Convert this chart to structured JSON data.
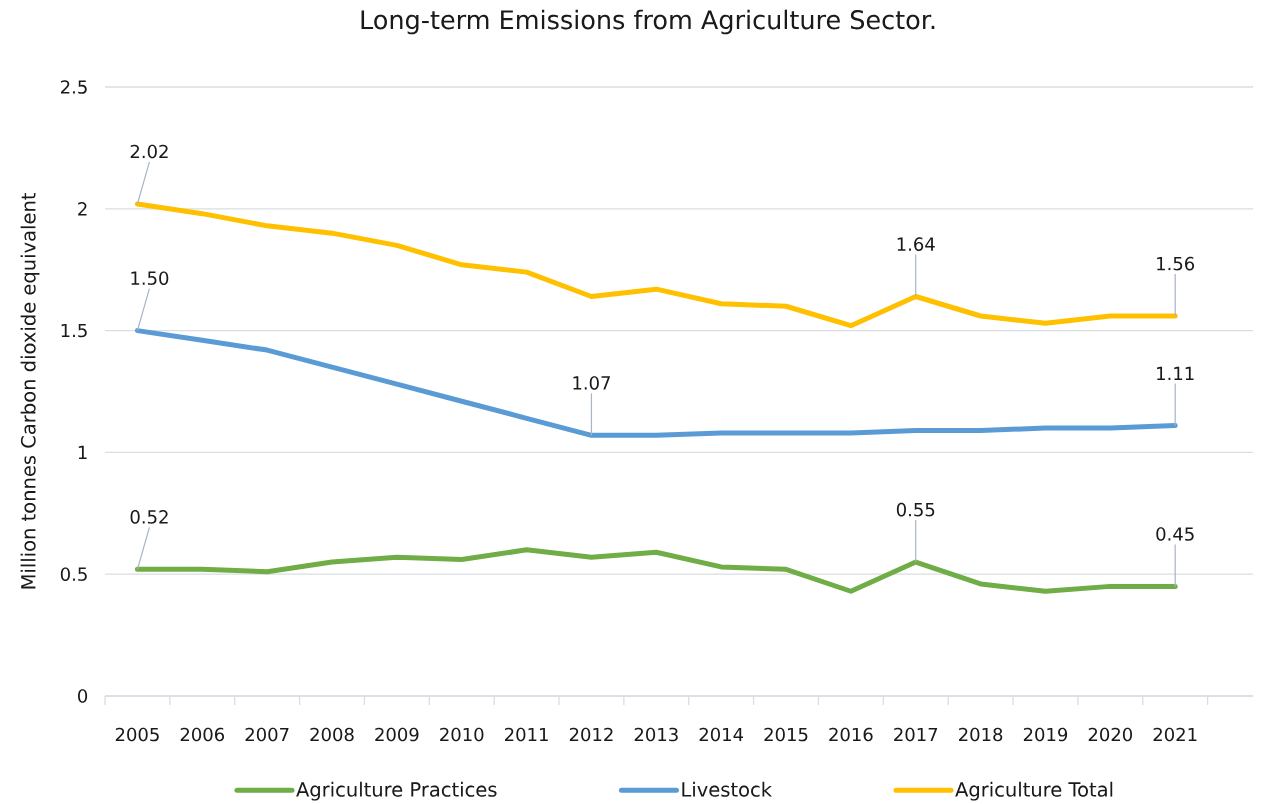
{
  "chart_data": {
    "type": "line",
    "title": "Long-term Emissions from Agriculture Sector.",
    "ylabel": "Million tonnes  Carbon dioxide equivalent",
    "categories": [
      "2005",
      "2006",
      "2007",
      "2008",
      "2009",
      "2010",
      "2011",
      "2012",
      "2013",
      "2014",
      "2015",
      "2016",
      "2017",
      "2018",
      "2019",
      "2020",
      "2021"
    ],
    "series": [
      {
        "name": "Agriculture Practices",
        "color": "#70ad47",
        "values": [
          0.52,
          0.52,
          0.51,
          0.55,
          0.57,
          0.56,
          0.6,
          0.57,
          0.59,
          0.53,
          0.52,
          0.43,
          0.55,
          0.46,
          0.43,
          0.45,
          0.45
        ],
        "value_labels": [
          "0.52",
          null,
          null,
          null,
          null,
          null,
          null,
          null,
          null,
          null,
          null,
          null,
          "0.55",
          null,
          null,
          null,
          "0.45"
        ]
      },
      {
        "name": "Livestock",
        "color": "#5b9bd5",
        "values": [
          1.5,
          1.46,
          1.42,
          1.35,
          1.28,
          1.21,
          1.14,
          1.07,
          1.07,
          1.08,
          1.08,
          1.08,
          1.09,
          1.09,
          1.1,
          1.1,
          1.11
        ],
        "value_labels": [
          "1.50",
          null,
          null,
          null,
          null,
          null,
          null,
          "1.07",
          null,
          null,
          null,
          null,
          null,
          null,
          null,
          null,
          "1.11"
        ]
      },
      {
        "name": "Agriculture Total",
        "color": "#ffc000",
        "values": [
          2.02,
          1.98,
          1.93,
          1.9,
          1.85,
          1.77,
          1.74,
          1.64,
          1.67,
          1.61,
          1.6,
          1.52,
          1.64,
          1.56,
          1.53,
          1.56,
          1.56
        ],
        "value_labels": [
          "2.02",
          null,
          null,
          null,
          null,
          null,
          null,
          null,
          null,
          null,
          null,
          null,
          "1.64",
          null,
          null,
          null,
          "1.56"
        ]
      }
    ],
    "ylim": [
      0,
      2.5
    ],
    "yticks": [
      0,
      0.5,
      1,
      1.5,
      2,
      2.5
    ],
    "grid": "y",
    "legend": "bottom",
    "marker": "none",
    "line_style": "solid"
  }
}
